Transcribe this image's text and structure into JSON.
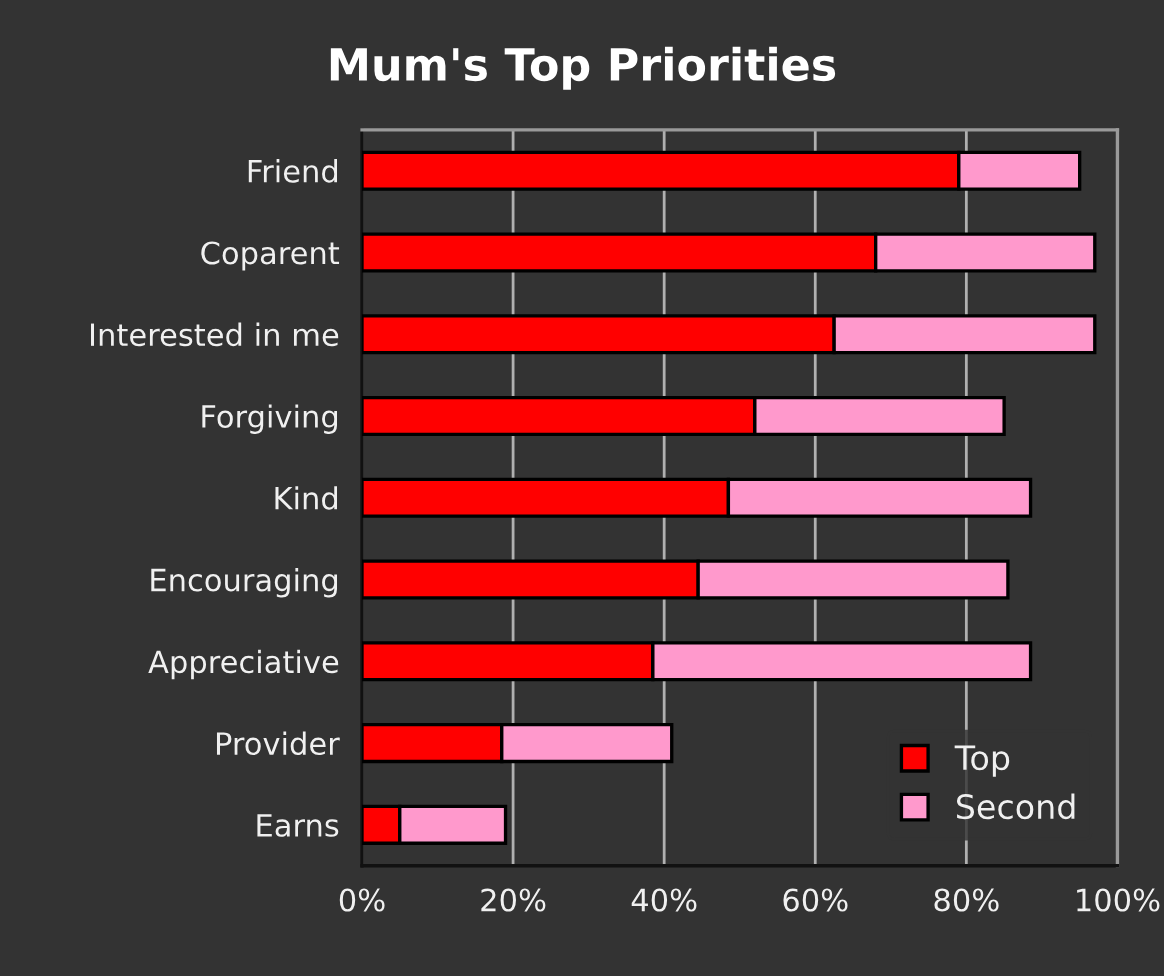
{
  "chart_data": {
    "type": "bar",
    "orientation": "horizontal",
    "stacked": true,
    "title": "Mum's Top Priorities",
    "categories": [
      "Friend",
      "Coparent",
      "Interested in me",
      "Forgiving",
      "Kind",
      "Encouraging",
      "Appreciative",
      "Provider",
      "Earns"
    ],
    "series": [
      {
        "name": "Top",
        "color": "#ff0000",
        "values": [
          79,
          68,
          62.5,
          52,
          48.5,
          44.5,
          38.5,
          18.5,
          5
        ]
      },
      {
        "name": "Second",
        "color": "#ff99cc",
        "values": [
          16,
          29,
          34.5,
          33,
          40,
          41,
          50,
          22.5,
          14
        ]
      }
    ],
    "xlim": [
      0,
      100
    ],
    "xticks": [
      {
        "value": 0,
        "label": "0%"
      },
      {
        "value": 20,
        "label": "20%"
      },
      {
        "value": 40,
        "label": "40%"
      },
      {
        "value": 60,
        "label": "60%"
      },
      {
        "value": 80,
        "label": "80%"
      },
      {
        "value": 100,
        "label": "100%"
      }
    ],
    "grid": "x",
    "legend": "bottom right"
  }
}
